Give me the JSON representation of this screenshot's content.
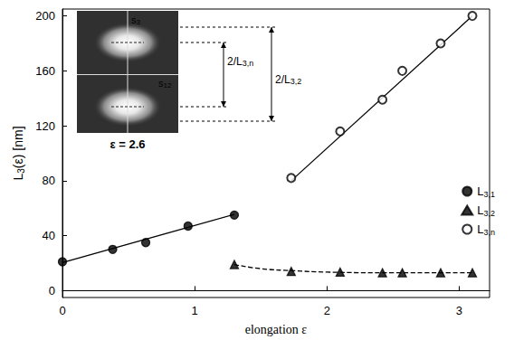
{
  "chart_data": {
    "type": "scatter",
    "x_label": "elongation ε",
    "y_label": "L3(ε) [nm]",
    "xlim": [
      0,
      3.23
    ],
    "xticks": [
      0,
      1,
      2,
      3
    ],
    "ylim": [
      -5,
      205
    ],
    "yticks": [
      0,
      40,
      80,
      120,
      160,
      200
    ],
    "legend": "right",
    "series": [
      {
        "name": "L3,1",
        "color": "#000000",
        "marker": "circle",
        "x": [
          0,
          0.38,
          0.63,
          0.95,
          1.3
        ],
        "values": [
          21,
          30,
          35,
          47,
          55
        ],
        "fit": {
          "line_style": "solid",
          "x": [
            0,
            1.3
          ],
          "values": [
            20.5,
            55.5
          ]
        }
      },
      {
        "name": "L3,2",
        "color": "#000000",
        "marker": "triangle",
        "x": [
          1.3,
          1.73,
          2.1,
          2.42,
          2.57,
          2.86,
          3.1
        ],
        "values": [
          19,
          14,
          13.5,
          13,
          13,
          13,
          13
        ],
        "fit": {
          "line_style": "dashed",
          "x": [
            1.3,
            1.5,
            1.75,
            2.0,
            2.5,
            3.1
          ],
          "values": [
            19,
            16,
            14.5,
            13.5,
            13,
            13
          ]
        }
      },
      {
        "name": "L3,n",
        "color": "#000000",
        "marker": "open_circle",
        "x": [
          1.73,
          2.1,
          2.42,
          2.57,
          2.86,
          3.1
        ],
        "values": [
          82,
          116,
          139,
          160,
          180,
          200
        ],
        "fit": {
          "line_style": "solid",
          "x": [
            1.73,
            3.1
          ],
          "values": [
            80,
            200
          ]
        }
      }
    ],
    "inset": {
      "caption": "ε = 2.6",
      "axis_labels": [
        "s3",
        "s12"
      ],
      "spacing_labels": [
        "2/L3,n",
        "2/L3,2"
      ]
    }
  }
}
